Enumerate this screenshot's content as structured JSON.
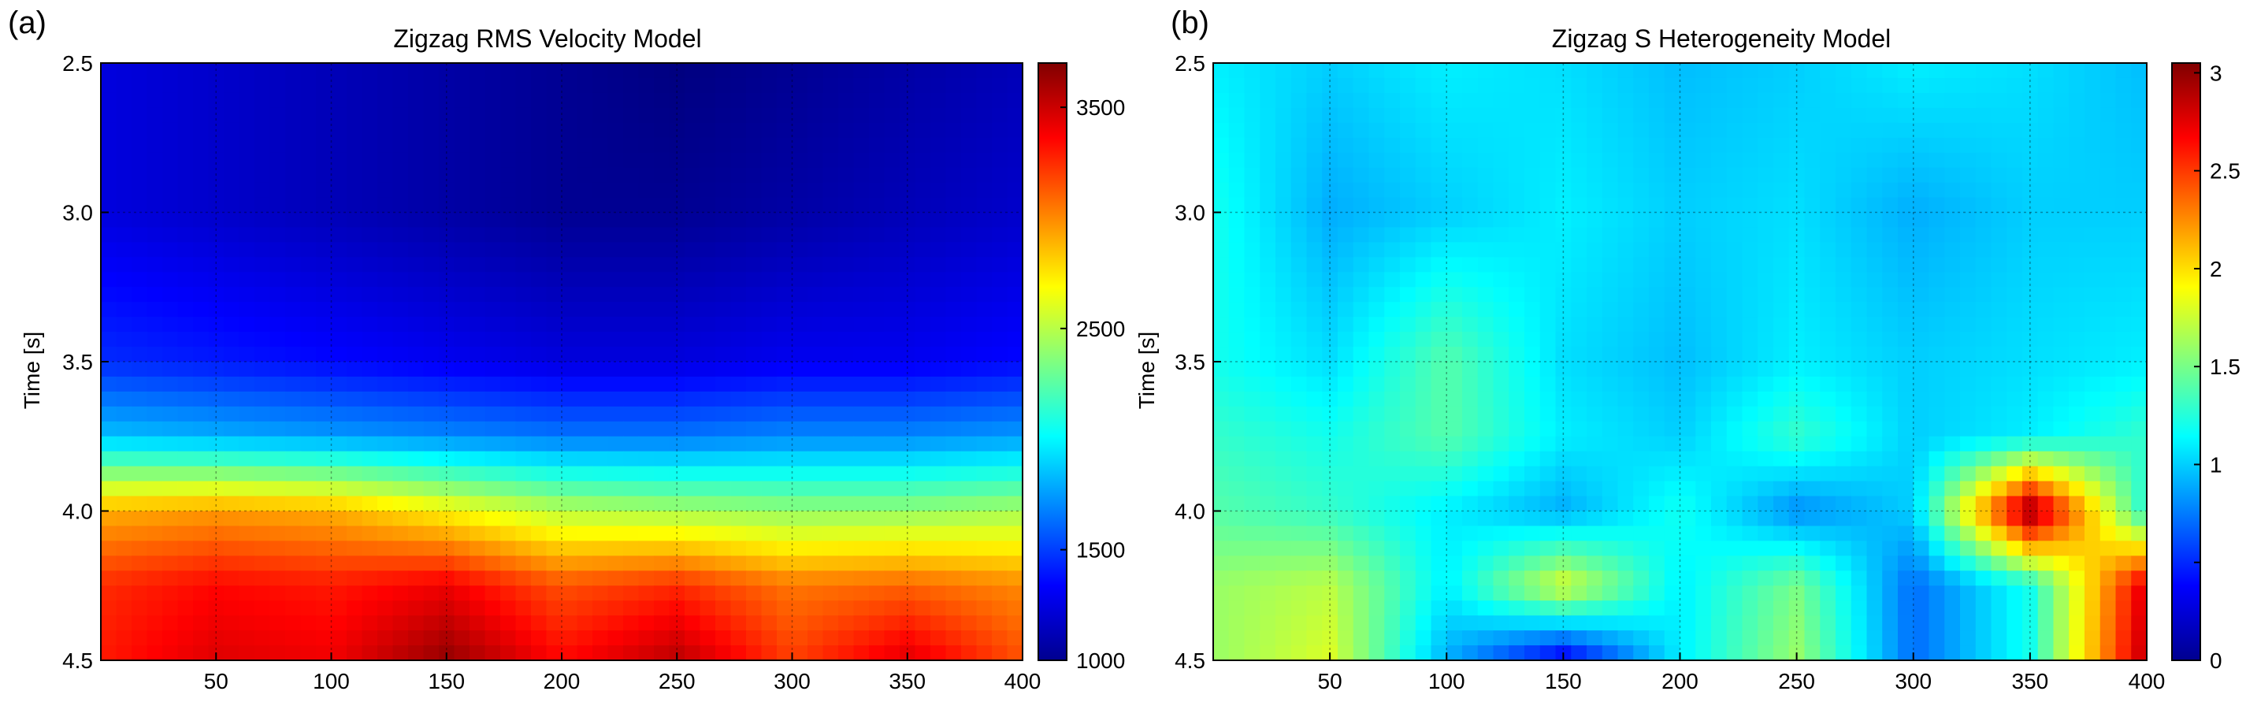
{
  "chart_data": [
    {
      "type": "heatmap",
      "panel_label": "(a)",
      "title": "Zigzag RMS Velocity Model",
      "xlabel": "",
      "ylabel": "Time [s]",
      "xlim": [
        0,
        400
      ],
      "ylim": [
        2.5,
        4.5
      ],
      "y_reversed": true,
      "xticks": [
        50,
        100,
        150,
        200,
        250,
        300,
        350,
        400
      ],
      "yticks": [
        2.5,
        3.0,
        3.5,
        4.0,
        4.5
      ],
      "grid": true,
      "colormap": "jet",
      "clim": [
        1000,
        3700
      ],
      "colorbar_ticks": [
        1000,
        1500,
        2500,
        3500
      ],
      "x": [
        0,
        50,
        100,
        150,
        200,
        250,
        300,
        350,
        400
      ],
      "y": [
        2.5,
        3.0,
        3.5,
        3.75,
        4.0,
        4.25,
        4.5
      ],
      "values": [
        [
          1250,
          1200,
          1150,
          1100,
          1050,
          1000,
          1050,
          1100,
          1150
        ],
        [
          1250,
          1200,
          1150,
          1100,
          1050,
          1050,
          1100,
          1150,
          1200
        ],
        [
          1450,
          1400,
          1350,
          1300,
          1250,
          1250,
          1300,
          1300,
          1350
        ],
        [
          1850,
          1800,
          1750,
          1700,
          1650,
          1650,
          1700,
          1700,
          1750
        ],
        [
          2900,
          2950,
          2900,
          2700,
          2500,
          2450,
          2400,
          2400,
          2450
        ],
        [
          3250,
          3350,
          3300,
          3400,
          3150,
          3250,
          3050,
          3100,
          3000
        ],
        [
          3300,
          3450,
          3400,
          3650,
          3350,
          3550,
          3200,
          3450,
          3150
        ]
      ]
    },
    {
      "type": "heatmap",
      "panel_label": "(b)",
      "title": "Zigzag S Heterogeneity Model",
      "xlabel": "",
      "ylabel": "Time [s]",
      "xlim": [
        0,
        400
      ],
      "ylim": [
        2.5,
        4.5
      ],
      "y_reversed": true,
      "xticks": [
        50,
        100,
        150,
        200,
        250,
        300,
        350,
        400
      ],
      "yticks": [
        2.5,
        3.0,
        3.5,
        4.0,
        4.5
      ],
      "grid": true,
      "colormap": "jet",
      "clim": [
        0,
        3.05
      ],
      "colorbar_ticks": [
        0,
        0.5,
        1,
        1.5,
        2,
        2.5,
        3
      ],
      "colorbar_tick_labels": [
        "0",
        "",
        "1",
        "1.5",
        "2",
        "2.5",
        "3"
      ],
      "x": [
        0,
        50,
        100,
        150,
        200,
        250,
        300,
        350,
        400
      ],
      "y": [
        2.5,
        3.0,
        3.5,
        3.75,
        4.0,
        4.25,
        4.5
      ],
      "values": [
        [
          1.1,
          1.0,
          1.1,
          1.05,
          0.95,
          1.0,
          1.1,
          1.05,
          0.95
        ],
        [
          1.2,
          0.9,
          1.0,
          1.1,
          1.0,
          1.05,
          0.9,
          1.0,
          1.0
        ],
        [
          1.2,
          1.05,
          1.4,
          1.05,
          0.95,
          1.1,
          1.0,
          1.05,
          1.1
        ],
        [
          1.3,
          1.2,
          1.4,
          1.1,
          1.0,
          1.3,
          1.0,
          1.1,
          1.3
        ],
        [
          1.4,
          1.3,
          1.1,
          0.9,
          1.2,
          0.8,
          1.0,
          3.0,
          1.2
        ],
        [
          1.6,
          1.7,
          1.1,
          1.8,
          1.1,
          1.5,
          0.7,
          1.2,
          2.8
        ],
        [
          1.6,
          1.8,
          0.9,
          0.3,
          1.1,
          1.6,
          0.7,
          1.2,
          2.9
        ]
      ]
    }
  ]
}
